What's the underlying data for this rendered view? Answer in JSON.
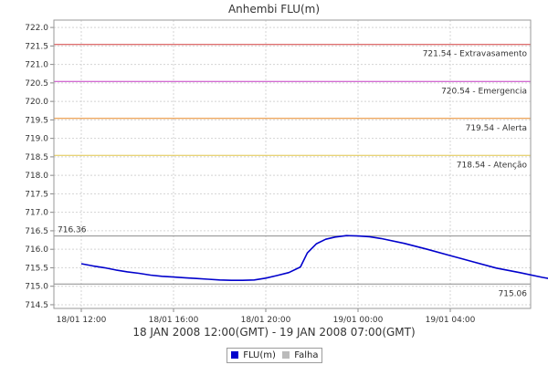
{
  "chart_data": {
    "type": "line",
    "title": "Anhembi FLU(m)",
    "subtitle": "18 JAN 2008 12:00(GMT) - 19 JAN 2008 07:00(GMT)",
    "ylim": [
      714.4,
      722.2
    ],
    "y_ticks": [
      "714.5",
      "715.0",
      "715.5",
      "716.0",
      "716.5",
      "717.0",
      "717.5",
      "718.0",
      "718.5",
      "719.0",
      "719.5",
      "720.0",
      "720.5",
      "721.0",
      "721.5",
      "722.0"
    ],
    "x_ticks": [
      "18/01 12:00",
      "18/01 16:00",
      "18/01 20:00",
      "19/01 00:00",
      "19/01 04:00"
    ],
    "grid": true,
    "legend_position": "bottom",
    "thresholds": [
      {
        "value": 721.54,
        "label": "721.54 - Extravasamento",
        "color": "#d23f3f"
      },
      {
        "value": 720.54,
        "label": "720.54 - Emergencia",
        "color": "#c43cc4"
      },
      {
        "value": 719.54,
        "label": "719.54 - Alerta",
        "color": "#e88a2a"
      },
      {
        "value": 718.54,
        "label": "718.54 - Atenção",
        "color": "#e0c64a"
      },
      {
        "value": 716.36,
        "label": "716.36",
        "color": "#8c8c8c"
      },
      {
        "value": 715.06,
        "label": "715.06",
        "color": "#8c8c8c"
      }
    ],
    "series": [
      {
        "name": "FLU(m)",
        "color": "#0000cc",
        "points": [
          [
            0.0,
            715.61
          ],
          [
            0.5,
            715.55
          ],
          [
            1.0,
            715.5
          ],
          [
            1.5,
            715.44
          ],
          [
            2.0,
            715.39
          ],
          [
            2.5,
            715.35
          ],
          [
            3.0,
            715.3
          ],
          [
            3.5,
            715.27
          ],
          [
            4.0,
            715.25
          ],
          [
            4.5,
            715.23
          ],
          [
            5.0,
            715.21
          ],
          [
            5.5,
            715.19
          ],
          [
            6.0,
            715.17
          ],
          [
            6.5,
            715.16
          ],
          [
            7.0,
            715.16
          ],
          [
            7.5,
            715.17
          ],
          [
            8.0,
            715.22
          ],
          [
            8.5,
            715.29
          ],
          [
            9.0,
            715.37
          ],
          [
            9.5,
            715.52
          ],
          [
            9.8,
            715.9
          ],
          [
            10.2,
            716.15
          ],
          [
            10.6,
            716.27
          ],
          [
            11.0,
            716.33
          ],
          [
            11.5,
            716.37
          ],
          [
            12.0,
            716.36
          ],
          [
            12.5,
            716.34
          ],
          [
            13.0,
            716.29
          ],
          [
            14.0,
            716.16
          ],
          [
            15.0,
            716.0
          ],
          [
            16.0,
            715.83
          ],
          [
            17.0,
            715.66
          ],
          [
            18.0,
            715.49
          ],
          [
            19.0,
            715.37
          ],
          [
            20.0,
            715.24
          ],
          [
            21.0,
            715.13
          ],
          [
            22.0,
            715.08
          ],
          [
            23.0,
            715.06
          ]
        ]
      }
    ],
    "legend": [
      {
        "label": "FLU(m)",
        "color": "#0000cc"
      },
      {
        "label": "Falha",
        "color": "#bbbbbb"
      }
    ]
  }
}
